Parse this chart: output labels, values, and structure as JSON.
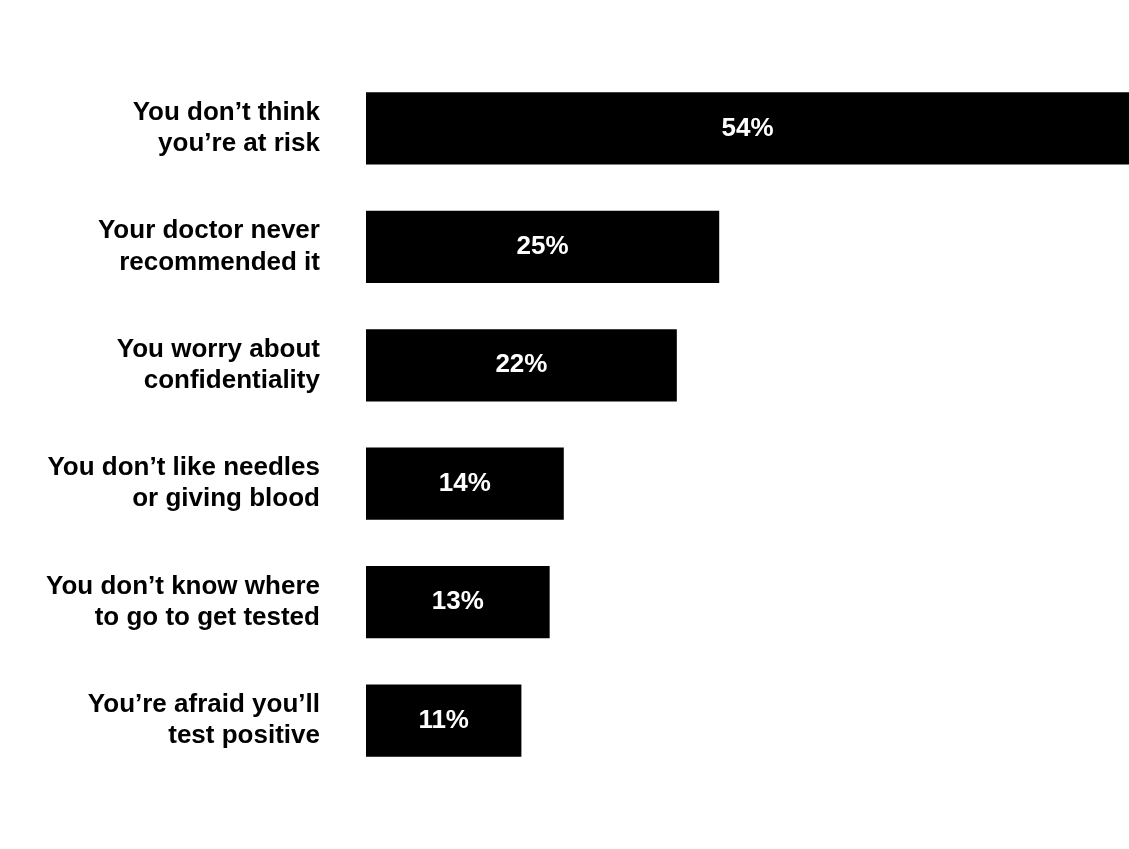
{
  "chart_data": {
    "type": "bar",
    "orientation": "horizontal",
    "categories": [
      "You don’t think\nyou’re at risk",
      "Your doctor never\nrecommended it",
      "You worry about\nconfidentiality",
      "You don’t like needles\nor giving blood",
      "You don’t know where\nto go to get tested",
      "You’re afraid you’ll\ntest positive"
    ],
    "values": [
      54,
      25,
      22,
      14,
      13,
      11
    ],
    "value_labels": [
      "54%",
      "25%",
      "22%",
      "14%",
      "13%",
      "11%"
    ],
    "color": "#000000",
    "tick_labels": "y"
  }
}
